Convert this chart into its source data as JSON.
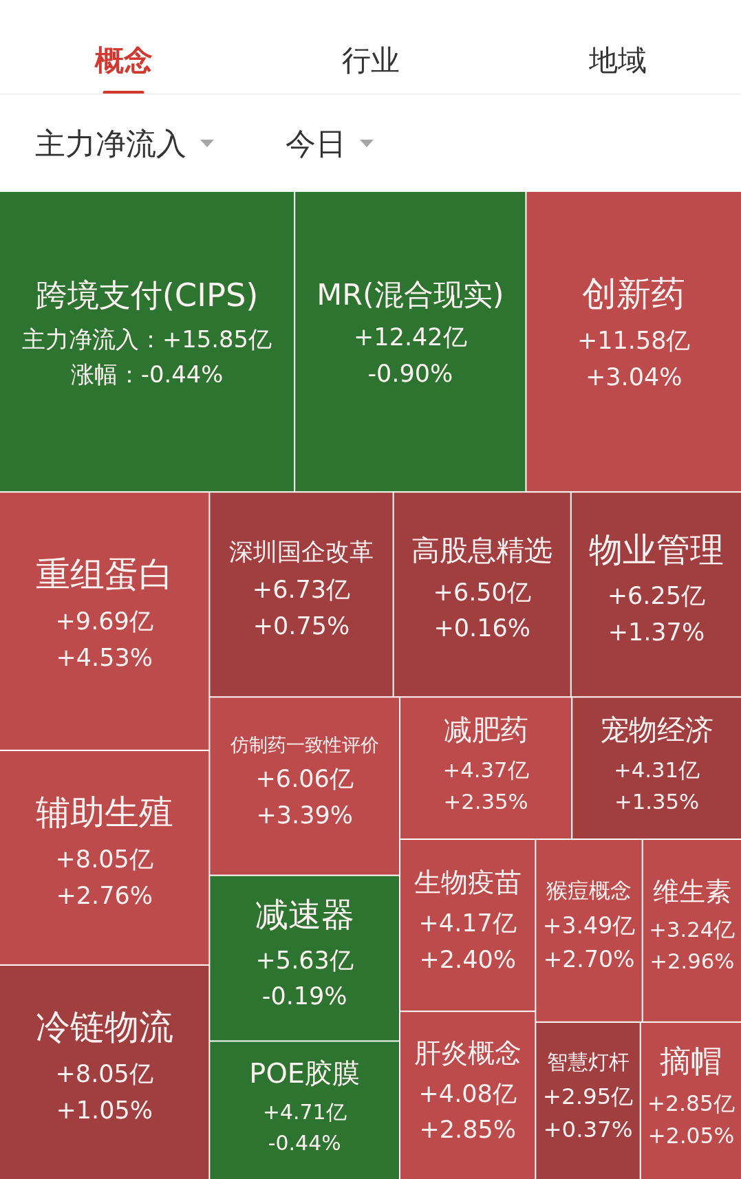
{
  "chart_data": {
    "type": "other",
    "annotations": [
      "概念",
      "行业",
      "地域",
      "主力净流入",
      "今日"
    ],
    "categories": [
      "跨境支付(CIPS)",
      "MR(混合现实)",
      "创新药",
      "重组蛋白",
      "辅助生殖",
      "冷链物流",
      "深圳国企改革",
      "高股息精选",
      "物业管理",
      "仿制药一致性评价",
      "减速器",
      "POE胶膜",
      "减肥药",
      "宠物经济",
      "生物疫苗",
      "肝炎概念",
      "猴痘概念",
      "维生素",
      "智慧灯杆",
      "摘帽"
    ],
    "series": [
      {
        "colors": [
          "#2e7431",
          "#2e7431",
          "#bd4b4b",
          "#bd4b4b",
          "#bd4b4b",
          "#a13f40",
          "#a13f40",
          "#a13f40",
          "#a13f40",
          "#bd4b4b",
          "#2e7431",
          "#2e7431",
          "#bd4b4b",
          "#a13f40",
          "#bd4b4b",
          "#bd4b4b",
          "#bd4b4b",
          "#bd4b4b",
          "#a13f40",
          "#bd4b4b"
        ],
        "values": [
          15.85,
          12.42,
          11.58,
          9.69,
          8.05,
          8.05,
          6.73,
          6.5,
          6.25,
          6.06,
          5.63,
          4.71,
          4.37,
          4.31,
          4.17,
          4.08,
          3.49,
          3.24,
          2.95,
          2.85
        ],
        "value_labels": [
          "主力净流入：+15.85亿",
          "+12.42亿",
          "+11.58亿",
          "+9.69亿",
          "+8.05亿",
          "+8.05亿",
          "+6.73亿",
          "+6.50亿",
          "+6.25亿",
          "+6.06亿",
          "+5.63亿",
          "+4.71亿",
          "+4.37亿",
          "+4.31亿",
          "+4.17亿",
          "+4.08亿",
          "+3.49亿",
          "+3.24亿",
          "+2.95亿",
          "+2.85亿"
        ]
      },
      {
        "values": [
          -0.44,
          -0.9,
          3.04,
          4.53,
          2.76,
          1.05,
          0.75,
          0.16,
          1.37,
          3.39,
          -0.19,
          -0.44,
          2.35,
          1.35,
          2.4,
          2.85,
          2.7,
          2.96,
          0.37,
          2.05
        ],
        "value_labels": [
          "涨幅：-0.44%",
          "-0.90%",
          "+3.04%",
          "+4.53%",
          "+2.76%",
          "+1.05%",
          "+0.75%",
          "+0.16%",
          "+1.37%",
          "+3.39%",
          "-0.19%",
          "-0.44%",
          "+2.35%",
          "+1.35%",
          "+2.40%",
          "+2.85%",
          "+2.70%",
          "+2.96%",
          "+0.37%",
          "+2.05%"
        ]
      }
    ]
  }
}
